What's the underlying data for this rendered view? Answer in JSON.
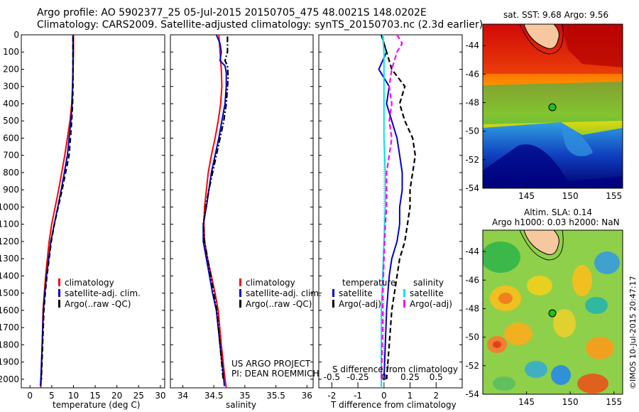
{
  "header": {
    "line1": "Argo profile: AO 5902377_25 05-Jul-2015 20150705_475 48.0021S 148.0202E",
    "line2": "Climatology: CARS2009. Satellite-adjusted climatology: synTS_20150703.nc (2.3d earlier)"
  },
  "credits": {
    "project": "US ARGO PROJECT",
    "pi": "PI: DEAN ROEMMICH",
    "watermark": "©IMOS 10-Jul-2015 20:47:17"
  },
  "colors": {
    "climatology": "#ff0000",
    "satellite": "#0000cc",
    "argo": "#000000",
    "sal_satellite": "#00e5e5",
    "sal_argo": "#ff00ff",
    "land": "#f7c8a0"
  },
  "chart_data": [
    {
      "type": "line",
      "name": "temperature-profile",
      "xlabel": "temperature (deg C)",
      "ylabel": "",
      "xlim": [
        -2,
        31
      ],
      "ylim": [
        2050,
        0
      ],
      "xticks": [
        0,
        5,
        10,
        15,
        20,
        25,
        30
      ],
      "yticks": [
        0,
        100,
        200,
        300,
        400,
        500,
        600,
        700,
        800,
        900,
        1000,
        1100,
        1200,
        1300,
        1400,
        1500,
        1600,
        1700,
        1800,
        1900,
        2000
      ],
      "legend": [
        "climatology",
        "satellite-adj. clim.",
        "Argo(..raw -QC)"
      ],
      "series": [
        {
          "name": "climatology",
          "color": "#ff0000",
          "dash": "solid",
          "points": [
            [
              10.0,
              0
            ],
            [
              10.0,
              100
            ],
            [
              9.9,
              200
            ],
            [
              9.8,
              300
            ],
            [
              9.6,
              400
            ],
            [
              9.2,
              500
            ],
            [
              8.6,
              600
            ],
            [
              8.0,
              700
            ],
            [
              7.3,
              800
            ],
            [
              6.6,
              900
            ],
            [
              5.8,
              1000
            ],
            [
              5.0,
              1100
            ],
            [
              4.4,
              1200
            ],
            [
              4.0,
              1300
            ],
            [
              3.6,
              1400
            ],
            [
              3.3,
              1500
            ],
            [
              3.0,
              1600
            ],
            [
              2.8,
              1800
            ],
            [
              2.6,
              2000
            ],
            [
              2.5,
              2050
            ]
          ]
        },
        {
          "name": "satellite-adj. clim.",
          "color": "#0000cc",
          "dash": "solid",
          "points": [
            [
              9.9,
              0
            ],
            [
              9.9,
              100
            ],
            [
              9.9,
              200
            ],
            [
              9.8,
              300
            ],
            [
              9.7,
              400
            ],
            [
              9.4,
              500
            ],
            [
              9.0,
              600
            ],
            [
              8.6,
              700
            ],
            [
              7.9,
              800
            ],
            [
              7.2,
              900
            ],
            [
              6.4,
              1000
            ],
            [
              5.6,
              1100
            ],
            [
              4.8,
              1200
            ],
            [
              4.3,
              1300
            ],
            [
              3.8,
              1400
            ],
            [
              3.4,
              1500
            ],
            [
              3.1,
              1600
            ],
            [
              2.8,
              1800
            ],
            [
              2.5,
              2000
            ],
            [
              2.4,
              2040
            ]
          ]
        },
        {
          "name": "Argo(..raw -QC)",
          "color": "#000000",
          "dash": "dashed",
          "points": [
            [
              9.9,
              10
            ],
            [
              9.9,
              100
            ],
            [
              9.9,
              200
            ],
            [
              9.9,
              300
            ],
            [
              9.8,
              400
            ],
            [
              9.6,
              500
            ],
            [
              9.3,
              600
            ],
            [
              9.0,
              700
            ],
            [
              8.2,
              800
            ],
            [
              7.4,
              900
            ],
            [
              6.5,
              1000
            ],
            [
              5.6,
              1100
            ],
            [
              4.9,
              1200
            ],
            [
              4.4,
              1300
            ],
            [
              3.9,
              1400
            ],
            [
              3.5,
              1500
            ],
            [
              3.2,
              1600
            ],
            [
              2.9,
              1800
            ],
            [
              2.6,
              2000
            ]
          ]
        }
      ]
    },
    {
      "type": "line",
      "name": "salinity-profile",
      "xlabel": "salinity",
      "ylabel": "",
      "xlim": [
        33.8,
        36.1
      ],
      "ylim": [
        2050,
        0
      ],
      "xticks": [
        34,
        34.5,
        35,
        35.5,
        36
      ],
      "legend": [
        "climatology",
        "satellite-adj. clim.",
        "Argo(..raw -QC)"
      ],
      "series": [
        {
          "name": "climatology",
          "color": "#ff0000",
          "dash": "solid",
          "points": [
            [
              34.58,
              0
            ],
            [
              34.6,
              100
            ],
            [
              34.62,
              200
            ],
            [
              34.63,
              300
            ],
            [
              34.61,
              400
            ],
            [
              34.57,
              500
            ],
            [
              34.52,
              600
            ],
            [
              34.46,
              700
            ],
            [
              34.41,
              800
            ],
            [
              34.38,
              900
            ],
            [
              34.35,
              1000
            ],
            [
              34.34,
              1100
            ],
            [
              34.35,
              1200
            ],
            [
              34.4,
              1300
            ],
            [
              34.46,
              1400
            ],
            [
              34.52,
              1500
            ],
            [
              34.57,
              1600
            ],
            [
              34.62,
              1800
            ],
            [
              34.68,
              2000
            ],
            [
              34.7,
              2050
            ]
          ]
        },
        {
          "name": "satellite-adj. clim.",
          "color": "#0000cc",
          "dash": "solid",
          "points": [
            [
              34.54,
              0
            ],
            [
              34.6,
              50
            ],
            [
              34.62,
              100
            ],
            [
              34.6,
              150
            ],
            [
              34.68,
              180
            ],
            [
              34.7,
              220
            ],
            [
              34.7,
              300
            ],
            [
              34.68,
              400
            ],
            [
              34.63,
              500
            ],
            [
              34.58,
              600
            ],
            [
              34.52,
              700
            ],
            [
              34.46,
              800
            ],
            [
              34.42,
              900
            ],
            [
              34.38,
              1000
            ],
            [
              34.33,
              1100
            ],
            [
              34.33,
              1200
            ],
            [
              34.38,
              1300
            ],
            [
              34.43,
              1400
            ],
            [
              34.48,
              1500
            ],
            [
              34.54,
              1600
            ],
            [
              34.6,
              1800
            ],
            [
              34.66,
              2000
            ],
            [
              34.67,
              2040
            ]
          ]
        },
        {
          "name": "Argo(..raw -QC)",
          "color": "#000000",
          "dash": "dashdot",
          "points": [
            [
              34.72,
              10
            ],
            [
              34.72,
              100
            ],
            [
              34.68,
              150
            ],
            [
              34.72,
              180
            ],
            [
              34.73,
              250
            ],
            [
              34.72,
              300
            ],
            [
              34.7,
              400
            ],
            [
              34.66,
              500
            ],
            [
              34.6,
              600
            ],
            [
              34.54,
              700
            ],
            [
              34.48,
              800
            ],
            [
              34.42,
              900
            ],
            [
              34.37,
              1000
            ],
            [
              34.33,
              1100
            ],
            [
              34.35,
              1200
            ],
            [
              34.4,
              1300
            ],
            [
              34.45,
              1400
            ],
            [
              34.5,
              1500
            ],
            [
              34.55,
              1600
            ],
            [
              34.6,
              1800
            ],
            [
              34.65,
              2000
            ]
          ]
        }
      ]
    },
    {
      "type": "line",
      "name": "difference-profile",
      "xlabel": "T difference from climatology",
      "ylabel": "",
      "top_xlabel": "S difference from climatology",
      "xlim": [
        -2.5,
        3
      ],
      "ylim": [
        2050,
        0
      ],
      "xticks": [
        -2,
        -1,
        0,
        1,
        2
      ],
      "top_xticks": [
        "-0.5",
        "-0.25",
        "0",
        "0.25",
        "0.5"
      ],
      "legend_temperature": {
        "title": "temperature",
        "items": [
          "satellite",
          "Argo(-adj)"
        ]
      },
      "legend_salinity": {
        "title": "salinity",
        "items": [
          "satellite",
          "Argo(-adj)"
        ]
      },
      "series": [
        {
          "name": "temperature satellite",
          "color": "#0000cc",
          "dash": "solid",
          "points": [
            [
              -0.1,
              0
            ],
            [
              0.1,
              100
            ],
            [
              -0.2,
              200
            ],
            [
              0.2,
              300
            ],
            [
              0.1,
              400
            ],
            [
              0.3,
              500
            ],
            [
              0.5,
              600
            ],
            [
              0.6,
              700
            ],
            [
              0.7,
              800
            ],
            [
              0.7,
              900
            ],
            [
              0.6,
              1000
            ],
            [
              0.6,
              1100
            ],
            [
              0.5,
              1200
            ],
            [
              0.3,
              1300
            ],
            [
              0.2,
              1400
            ],
            [
              0.15,
              1500
            ],
            [
              0.1,
              1600
            ],
            [
              0.05,
              1800
            ],
            [
              0,
              2000
            ]
          ]
        },
        {
          "name": "temperature Argo(-adj)",
          "color": "#000000",
          "dash": "dashed",
          "points": [
            [
              -0.1,
              0
            ],
            [
              0.1,
              100
            ],
            [
              0.3,
              200
            ],
            [
              0.8,
              300
            ],
            [
              0.6,
              400
            ],
            [
              0.8,
              500
            ],
            [
              1.1,
              600
            ],
            [
              1.2,
              700
            ],
            [
              1.1,
              800
            ],
            [
              1.0,
              900
            ],
            [
              1.0,
              1000
            ],
            [
              0.9,
              1100
            ],
            [
              0.8,
              1200
            ],
            [
              0.6,
              1300
            ],
            [
              0.5,
              1400
            ],
            [
              0.4,
              1500
            ],
            [
              0.3,
              1600
            ],
            [
              0.2,
              1800
            ],
            [
              0.1,
              2000
            ]
          ]
        },
        {
          "name": "salinity satellite",
          "color": "#00e5e5",
          "dash": "solid",
          "points": [
            [
              -0.05,
              0
            ],
            [
              0,
              100
            ],
            [
              0,
              200
            ],
            [
              0,
              400
            ],
            [
              0,
              600
            ],
            [
              0.05,
              800
            ],
            [
              0.05,
              1000
            ],
            [
              0,
              1200
            ],
            [
              -0.05,
              1400
            ],
            [
              -0.1,
              1600
            ],
            [
              -0.1,
              1800
            ],
            [
              -0.1,
              2050
            ]
          ]
        },
        {
          "name": "salinity Argo(-adj)",
          "color": "#ff00ff",
          "dash": "dashed",
          "points": [
            [
              0.5,
              0
            ],
            [
              0.7,
              50
            ],
            [
              0.5,
              100
            ],
            [
              0.3,
              200
            ],
            [
              0.2,
              300
            ],
            [
              0.3,
              400
            ],
            [
              0.2,
              500
            ],
            [
              0.3,
              600
            ],
            [
              0.2,
              700
            ],
            [
              0.1,
              800
            ],
            [
              0.1,
              900
            ],
            [
              0.1,
              1000
            ],
            [
              0.05,
              1100
            ],
            [
              0,
              1300
            ],
            [
              -0.05,
              1500
            ],
            [
              -0.05,
              1700
            ],
            [
              -0.1,
              2000
            ]
          ]
        }
      ]
    },
    {
      "type": "heatmap",
      "name": "sst-map",
      "title": "sat. SST: 9.68 Argo: 9.56",
      "xlim": [
        140,
        156
      ],
      "ylim": [
        -54,
        -42.5
      ],
      "xticks": [
        145,
        150,
        155
      ],
      "yticks": [
        -44,
        -46,
        -48,
        -50,
        -52,
        -54
      ],
      "float_position": [
        148.02,
        -48.0
      ]
    },
    {
      "type": "heatmap",
      "name": "sla-map",
      "title_line1": "Altim. SLA: 0.14",
      "title_line2": "Argo h1000: 0.03 h2000: NaN",
      "xlim": [
        140,
        156
      ],
      "ylim": [
        -54,
        -42.5
      ],
      "xticks": [
        145,
        150,
        155
      ],
      "yticks": [
        -44,
        -46,
        -48,
        -50,
        -52,
        -54
      ],
      "float_position": [
        148.02,
        -48.0
      ]
    }
  ]
}
